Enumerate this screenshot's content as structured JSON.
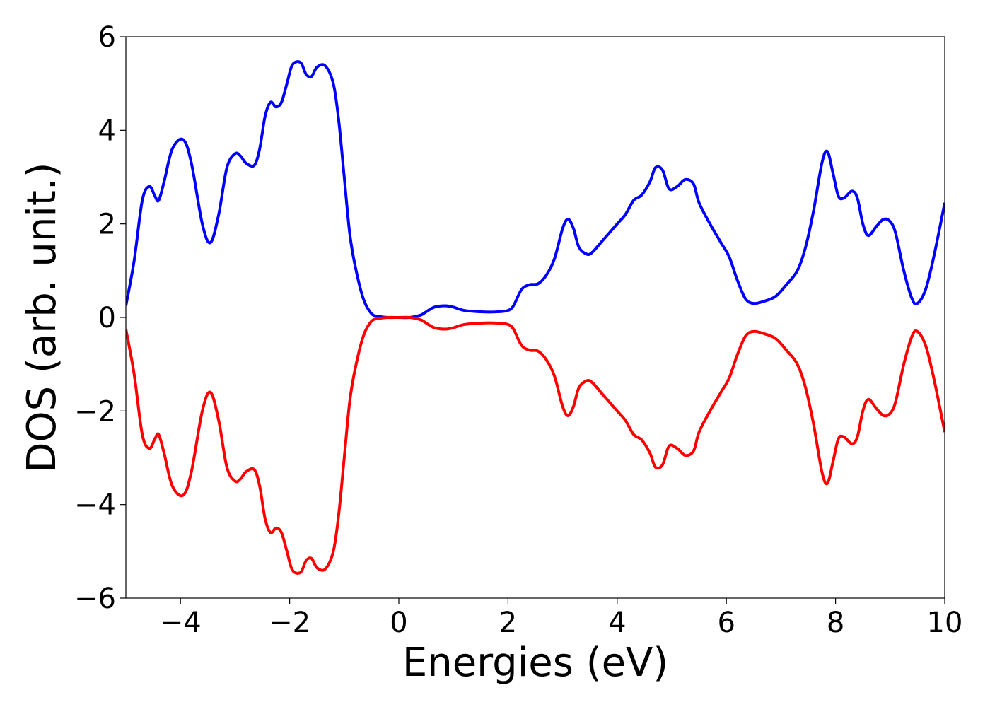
{
  "chart_data": {
    "type": "line",
    "title": "",
    "xlabel": "Energies (eV)",
    "ylabel": "DOS (arb. unit.)",
    "xlim": [
      -5,
      10
    ],
    "ylim": [
      -6,
      6
    ],
    "xticks": [
      -4,
      -2,
      0,
      2,
      4,
      6,
      8,
      10
    ],
    "xtick_labels": [
      "−4",
      "−2",
      "0",
      "2",
      "4",
      "6",
      "8",
      "10"
    ],
    "yticks": [
      -6,
      -4,
      -2,
      0,
      2,
      4,
      6
    ],
    "ytick_labels": [
      "−6",
      "−4",
      "−2",
      "0",
      "2",
      "4",
      "6"
    ],
    "grid": false,
    "legend": "none",
    "series": [
      {
        "color": "#0000ff",
        "x": [
          -5.0,
          -4.85,
          -4.7,
          -4.57,
          -4.47,
          -4.4,
          -4.3,
          -4.15,
          -3.95,
          -3.8,
          -3.6,
          -3.45,
          -3.3,
          -3.15,
          -3.0,
          -2.9,
          -2.8,
          -2.65,
          -2.55,
          -2.45,
          -2.35,
          -2.25,
          -2.15,
          -2.05,
          -1.95,
          -1.8,
          -1.7,
          -1.6,
          -1.5,
          -1.35,
          -1.2,
          -1.1,
          -1.0,
          -0.9,
          -0.8,
          -0.65,
          -0.5,
          -0.35,
          -0.2,
          0.0,
          0.2,
          0.4,
          0.5,
          0.65,
          0.85,
          1.0,
          1.2,
          1.5,
          1.8,
          2.0,
          2.1,
          2.25,
          2.4,
          2.55,
          2.7,
          2.85,
          3.0,
          3.1,
          3.2,
          3.3,
          3.45,
          3.55,
          3.7,
          3.85,
          4.0,
          4.15,
          4.3,
          4.45,
          4.6,
          4.7,
          4.83,
          4.95,
          5.1,
          5.25,
          5.4,
          5.5,
          5.7,
          5.9,
          6.05,
          6.2,
          6.35,
          6.5,
          6.7,
          6.9,
          7.1,
          7.3,
          7.45,
          7.6,
          7.75,
          7.85,
          7.95,
          8.05,
          8.15,
          8.3,
          8.4,
          8.5,
          8.6,
          8.75,
          8.88,
          9.0,
          9.1,
          9.25,
          9.4,
          9.5,
          9.65,
          9.8,
          10.0
        ],
        "y": [
          0.25,
          1.2,
          2.5,
          2.8,
          2.6,
          2.5,
          2.9,
          3.6,
          3.8,
          3.3,
          2.0,
          1.6,
          2.2,
          3.2,
          3.5,
          3.45,
          3.3,
          3.25,
          3.6,
          4.3,
          4.6,
          4.5,
          4.6,
          5.0,
          5.4,
          5.45,
          5.2,
          5.15,
          5.35,
          5.38,
          5.0,
          4.2,
          3.0,
          1.8,
          1.1,
          0.4,
          0.08,
          0.02,
          0.0,
          0.0,
          0.0,
          0.05,
          0.12,
          0.22,
          0.25,
          0.22,
          0.15,
          0.12,
          0.12,
          0.15,
          0.25,
          0.6,
          0.7,
          0.72,
          0.9,
          1.25,
          1.9,
          2.1,
          1.9,
          1.5,
          1.35,
          1.4,
          1.6,
          1.8,
          2.0,
          2.2,
          2.5,
          2.62,
          2.9,
          3.2,
          3.15,
          2.75,
          2.8,
          2.95,
          2.85,
          2.45,
          2.0,
          1.6,
          1.3,
          0.8,
          0.4,
          0.3,
          0.35,
          0.45,
          0.7,
          1.0,
          1.5,
          2.3,
          3.3,
          3.55,
          3.1,
          2.6,
          2.55,
          2.7,
          2.55,
          2.0,
          1.75,
          1.95,
          2.1,
          2.05,
          1.8,
          1.0,
          0.4,
          0.3,
          0.6,
          1.3,
          2.45
        ]
      },
      {
        "color": "#ff0000",
        "x": [
          -5.0,
          -4.85,
          -4.7,
          -4.57,
          -4.47,
          -4.4,
          -4.3,
          -4.15,
          -3.95,
          -3.8,
          -3.6,
          -3.45,
          -3.3,
          -3.15,
          -3.0,
          -2.9,
          -2.8,
          -2.65,
          -2.55,
          -2.45,
          -2.35,
          -2.25,
          -2.15,
          -2.05,
          -1.95,
          -1.8,
          -1.7,
          -1.6,
          -1.5,
          -1.35,
          -1.2,
          -1.1,
          -1.0,
          -0.9,
          -0.8,
          -0.65,
          -0.5,
          -0.35,
          -0.2,
          0.0,
          0.2,
          0.4,
          0.5,
          0.65,
          0.85,
          1.0,
          1.2,
          1.5,
          1.8,
          2.0,
          2.1,
          2.25,
          2.4,
          2.55,
          2.7,
          2.85,
          3.0,
          3.1,
          3.2,
          3.3,
          3.45,
          3.55,
          3.7,
          3.85,
          4.0,
          4.15,
          4.3,
          4.45,
          4.6,
          4.7,
          4.83,
          4.95,
          5.1,
          5.25,
          5.4,
          5.5,
          5.7,
          5.9,
          6.05,
          6.2,
          6.35,
          6.5,
          6.7,
          6.9,
          7.1,
          7.3,
          7.45,
          7.6,
          7.75,
          7.85,
          7.95,
          8.05,
          8.15,
          8.3,
          8.4,
          8.5,
          8.6,
          8.75,
          8.88,
          9.0,
          9.1,
          9.25,
          9.4,
          9.5,
          9.65,
          9.8,
          10.0
        ],
        "y": [
          -0.25,
          -1.2,
          -2.5,
          -2.8,
          -2.6,
          -2.5,
          -2.9,
          -3.6,
          -3.8,
          -3.3,
          -2.0,
          -1.6,
          -2.2,
          -3.2,
          -3.5,
          -3.45,
          -3.3,
          -3.25,
          -3.6,
          -4.3,
          -4.6,
          -4.5,
          -4.6,
          -5.0,
          -5.4,
          -5.45,
          -5.2,
          -5.15,
          -5.35,
          -5.38,
          -5.0,
          -4.2,
          -3.0,
          -1.8,
          -1.1,
          -0.4,
          -0.08,
          -0.02,
          0.0,
          0.0,
          0.0,
          -0.05,
          -0.12,
          -0.22,
          -0.25,
          -0.22,
          -0.15,
          -0.12,
          -0.12,
          -0.15,
          -0.25,
          -0.6,
          -0.7,
          -0.72,
          -0.9,
          -1.25,
          -1.9,
          -2.1,
          -1.9,
          -1.5,
          -1.35,
          -1.4,
          -1.6,
          -1.8,
          -2.0,
          -2.2,
          -2.5,
          -2.62,
          -2.9,
          -3.2,
          -3.15,
          -2.75,
          -2.8,
          -2.95,
          -2.85,
          -2.45,
          -2.0,
          -1.6,
          -1.3,
          -0.8,
          -0.4,
          -0.3,
          -0.35,
          -0.45,
          -0.7,
          -1.0,
          -1.5,
          -2.3,
          -3.3,
          -3.55,
          -3.1,
          -2.6,
          -2.55,
          -2.7,
          -2.55,
          -2.0,
          -1.75,
          -1.95,
          -2.1,
          -2.05,
          -1.8,
          -1.0,
          -0.4,
          -0.3,
          -0.6,
          -1.3,
          -2.45
        ]
      }
    ]
  }
}
